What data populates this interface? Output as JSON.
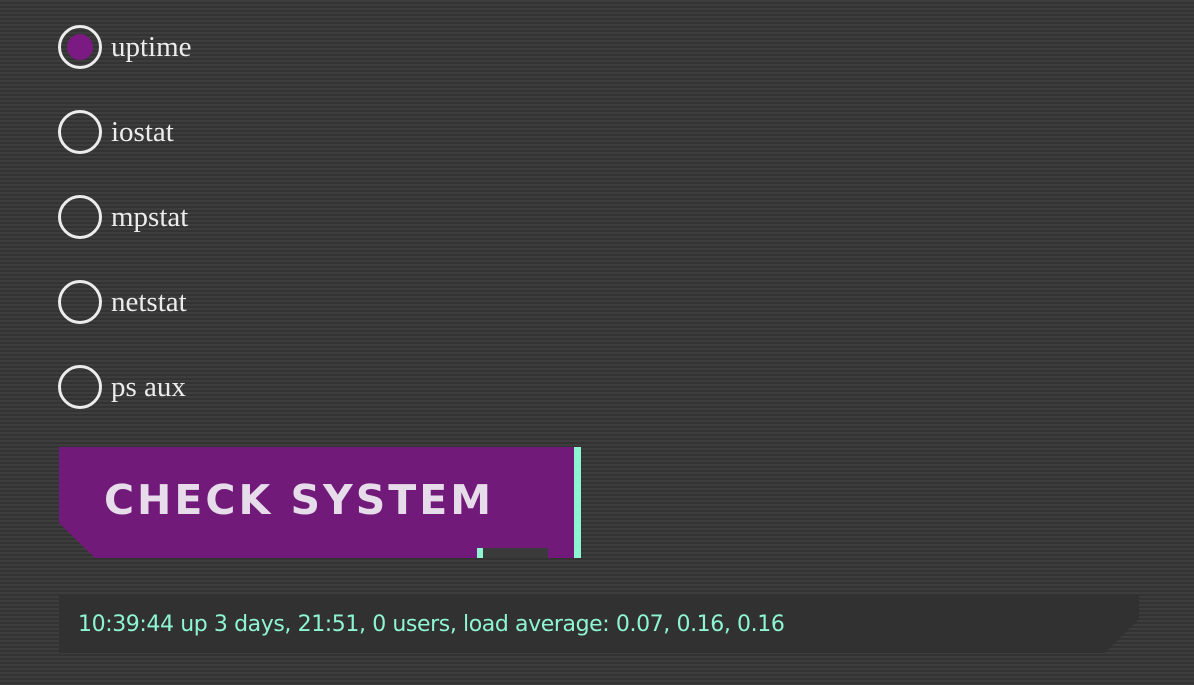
{
  "commands": [
    {
      "label": "uptime",
      "checked": true
    },
    {
      "label": "iostat",
      "checked": false
    },
    {
      "label": "mpstat",
      "checked": false
    },
    {
      "label": "netstat",
      "checked": false
    },
    {
      "label": "ps aux",
      "checked": false
    }
  ],
  "button": {
    "label": "CHECK SYSTEM"
  },
  "output": {
    "text": "10:39:44 up 3 days, 21:51, 0 users, load average: 0.07, 0.16, 0.16"
  },
  "colors": {
    "accent": "#721a7a",
    "highlight": "#8ef5d3",
    "text": "#ececec"
  }
}
